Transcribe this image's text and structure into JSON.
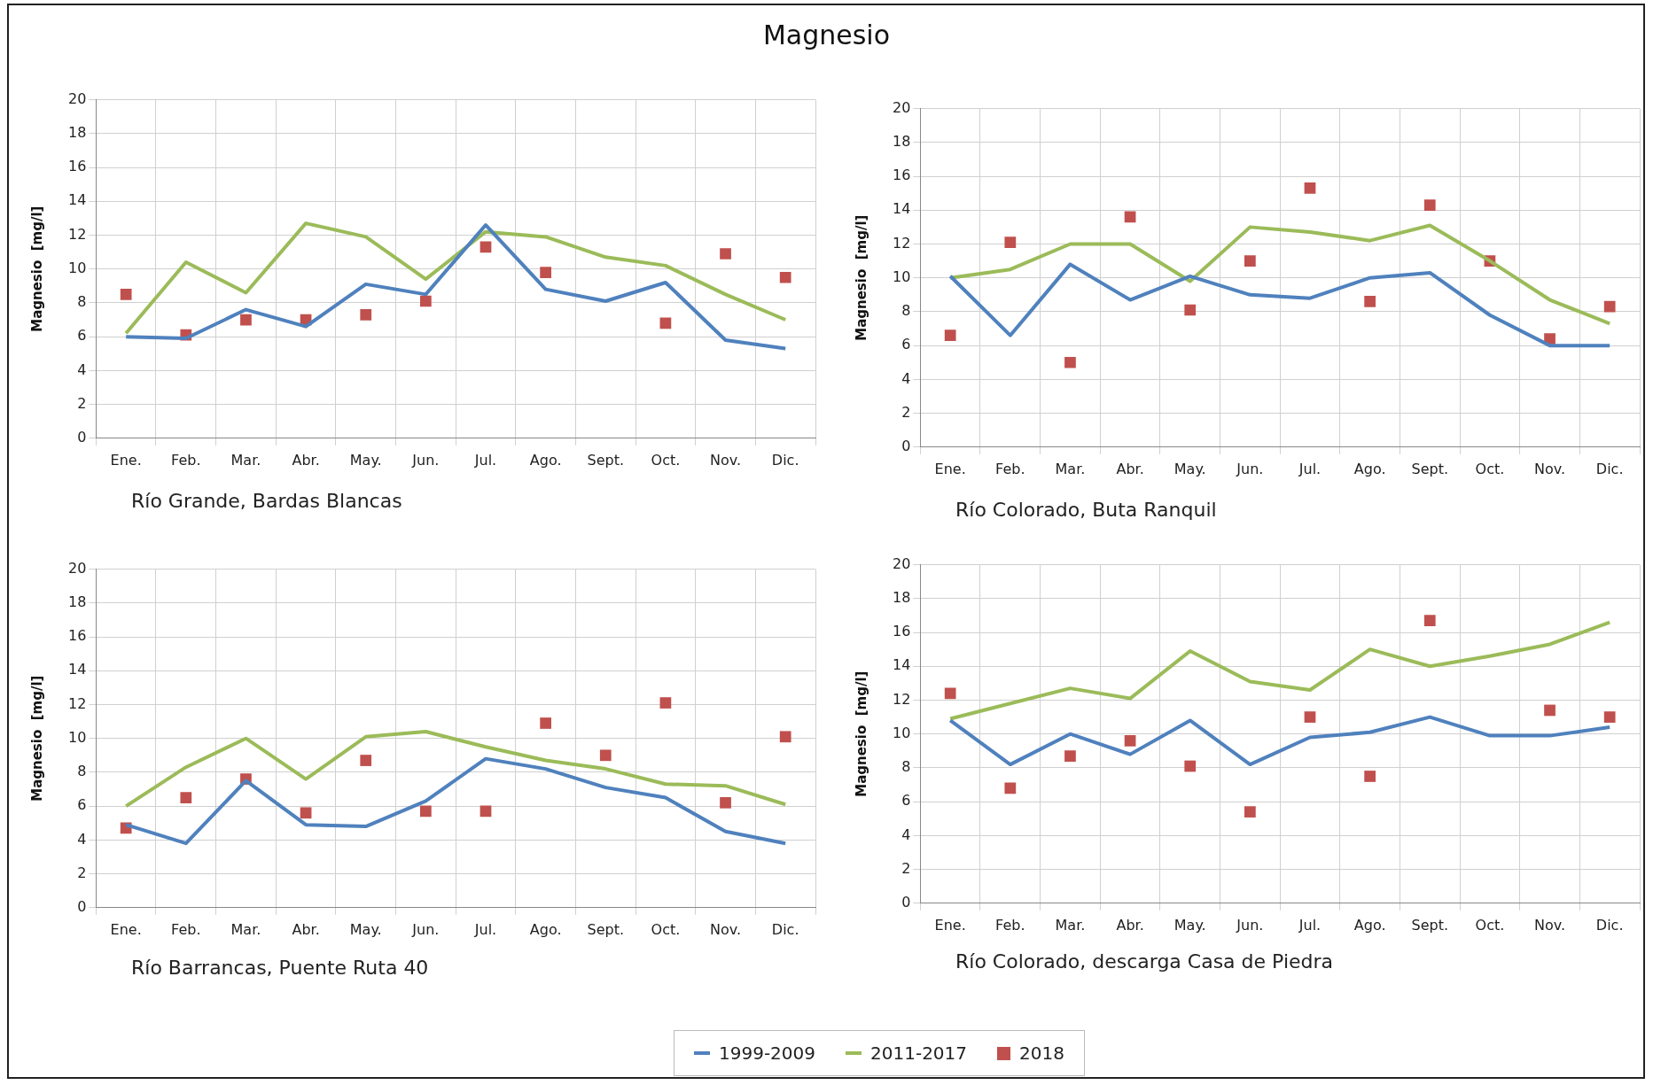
{
  "chart_data": [
    {
      "type": "line",
      "title": "Magnesio",
      "subtitle": "Río Grande, Bardas Blancas",
      "ylabel": "Magnesio  [mg/l]",
      "categories": [
        "Ene.",
        "Feb.",
        "Mar.",
        "Abr.",
        "May.",
        "Jun.",
        "Jul.",
        "Ago.",
        "Sept.",
        "Oct.",
        "Nov.",
        "Dic."
      ],
      "ylim": [
        0,
        20
      ],
      "yticks": [
        0,
        2,
        4,
        6,
        8,
        10,
        12,
        14,
        16,
        18,
        20
      ],
      "grid": true,
      "legend": "bottom",
      "series": [
        {
          "name": "1999-2009",
          "color": "#4f81bd",
          "marker": "none",
          "values": [
            6.0,
            5.9,
            7.6,
            6.6,
            9.1,
            8.5,
            12.6,
            8.8,
            8.1,
            9.2,
            5.8,
            5.3
          ]
        },
        {
          "name": "2011-2017",
          "color": "#9bbb59",
          "marker": "none",
          "values": [
            6.2,
            10.4,
            8.6,
            12.7,
            11.9,
            9.4,
            12.2,
            11.9,
            10.7,
            10.2,
            8.5,
            7.0
          ]
        },
        {
          "name": "2018",
          "type": "scatter",
          "color": "#c0504d",
          "marker": "square",
          "values": [
            8.5,
            6.1,
            7.0,
            7.0,
            7.3,
            8.1,
            11.3,
            9.8,
            null,
            6.8,
            10.9,
            9.5
          ]
        }
      ]
    },
    {
      "type": "line",
      "subtitle": "Río Colorado, Buta Ranquil",
      "ylabel": "Magnesio  [mg/l]",
      "categories": [
        "Ene.",
        "Feb.",
        "Mar.",
        "Abr.",
        "May.",
        "Jun.",
        "Jul.",
        "Ago.",
        "Sept.",
        "Oct.",
        "Nov.",
        "Dic."
      ],
      "ylim": [
        0,
        20
      ],
      "yticks": [
        0,
        2,
        4,
        6,
        8,
        10,
        12,
        14,
        16,
        18,
        20
      ],
      "grid": true,
      "legend": "bottom",
      "series": [
        {
          "name": "1999-2009",
          "color": "#4f81bd",
          "marker": "none",
          "values": [
            10.1,
            6.6,
            10.8,
            8.7,
            10.1,
            9.0,
            8.8,
            10.0,
            10.3,
            7.8,
            6.0,
            6.0
          ]
        },
        {
          "name": "2011-2017",
          "color": "#9bbb59",
          "marker": "none",
          "values": [
            10.0,
            10.5,
            12.0,
            12.0,
            9.8,
            13.0,
            12.7,
            12.2,
            13.1,
            11.0,
            8.7,
            7.3
          ]
        },
        {
          "name": "2018",
          "type": "scatter",
          "color": "#c0504d",
          "marker": "square",
          "values": [
            6.6,
            12.1,
            5.0,
            13.6,
            8.1,
            11.0,
            15.3,
            8.6,
            14.3,
            11.0,
            6.4,
            8.3
          ]
        }
      ]
    },
    {
      "type": "line",
      "subtitle": "Río Barrancas, Puente Ruta 40",
      "ylabel": "Magnesio  [mg/l]",
      "categories": [
        "Ene.",
        "Feb.",
        "Mar.",
        "Abr.",
        "May.",
        "Jun.",
        "Jul.",
        "Ago.",
        "Sept.",
        "Oct.",
        "Nov.",
        "Dic."
      ],
      "ylim": [
        0,
        20
      ],
      "yticks": [
        0,
        2,
        4,
        6,
        8,
        10,
        12,
        14,
        16,
        18,
        20
      ],
      "grid": true,
      "legend": "bottom",
      "series": [
        {
          "name": "1999-2009",
          "color": "#4f81bd",
          "marker": "none",
          "values": [
            4.9,
            3.8,
            7.5,
            4.9,
            4.8,
            6.3,
            8.8,
            8.2,
            7.1,
            6.5,
            4.5,
            3.8
          ]
        },
        {
          "name": "2011-2017",
          "color": "#9bbb59",
          "marker": "none",
          "values": [
            6.0,
            8.3,
            10.0,
            7.6,
            10.1,
            10.4,
            9.5,
            8.7,
            8.2,
            7.3,
            7.2,
            6.1
          ]
        },
        {
          "name": "2018",
          "type": "scatter",
          "color": "#c0504d",
          "marker": "square",
          "values": [
            4.7,
            6.5,
            7.6,
            5.6,
            8.7,
            5.7,
            5.7,
            10.9,
            9.0,
            12.1,
            6.2,
            10.1
          ]
        }
      ]
    },
    {
      "type": "line",
      "subtitle": "Río Colorado, descarga Casa de Piedra",
      "ylabel": "Magnesio  [mg/l]",
      "categories": [
        "Ene.",
        "Feb.",
        "Mar.",
        "Abr.",
        "May.",
        "Jun.",
        "Jul.",
        "Ago.",
        "Sept.",
        "Oct.",
        "Nov.",
        "Dic."
      ],
      "ylim": [
        0,
        20
      ],
      "yticks": [
        0,
        2,
        4,
        6,
        8,
        10,
        12,
        14,
        16,
        18,
        20
      ],
      "grid": true,
      "legend": "bottom",
      "series": [
        {
          "name": "1999-2009",
          "color": "#4f81bd",
          "marker": "none",
          "values": [
            10.8,
            8.2,
            10.0,
            8.8,
            10.8,
            8.2,
            9.8,
            10.1,
            11.0,
            9.9,
            9.9,
            10.4
          ]
        },
        {
          "name": "2011-2017",
          "color": "#9bbb59",
          "marker": "none",
          "values": [
            10.9,
            11.8,
            12.7,
            12.1,
            14.9,
            13.1,
            12.6,
            15.0,
            14.0,
            14.6,
            15.3,
            16.6
          ]
        },
        {
          "name": "2018",
          "type": "scatter",
          "color": "#c0504d",
          "marker": "square",
          "values": [
            12.4,
            6.8,
            8.7,
            9.6,
            8.1,
            5.4,
            11.0,
            7.5,
            16.7,
            null,
            11.4,
            11.0
          ]
        }
      ]
    }
  ]
}
